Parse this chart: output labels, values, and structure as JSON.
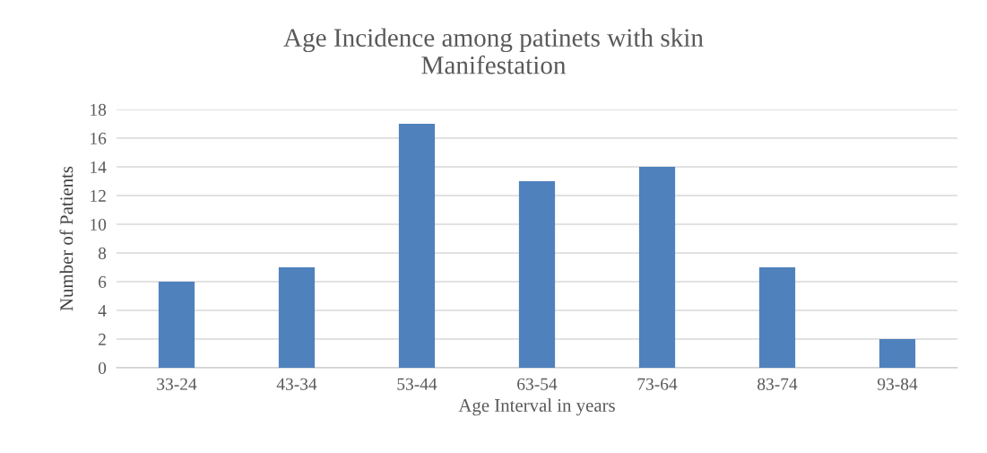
{
  "chart_data": {
    "type": "bar",
    "title": "Age Incidence among patinets with skin\nManifestation",
    "xlabel": "Age Interval in years",
    "ylabel": "Number of Patients",
    "categories": [
      "33-24",
      "43-34",
      "53-44",
      "63-54",
      "73-64",
      "83-74",
      "93-84"
    ],
    "values": [
      6,
      7,
      17,
      13,
      14,
      7,
      2
    ],
    "color": "#4f81bd",
    "ylim": [
      0,
      18
    ],
    "yticks": [
      0,
      2,
      4,
      6,
      8,
      10,
      12,
      14,
      16,
      18
    ],
    "grid": "y",
    "legend": false
  }
}
